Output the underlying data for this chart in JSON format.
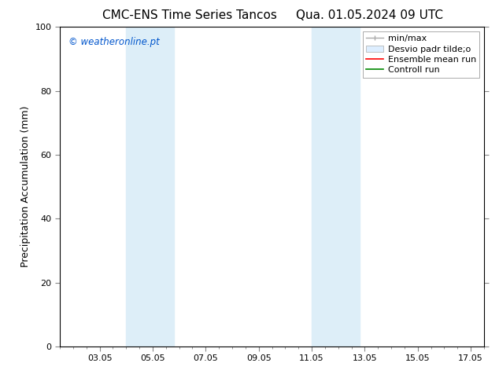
{
  "title_left": "CMC-ENS Time Series Tancos",
  "title_right": "Qua. 01.05.2024 09 UTC",
  "ylabel": "Precipitation Accumulation (mm)",
  "ylim": [
    0,
    100
  ],
  "yticks": [
    0,
    20,
    40,
    60,
    80,
    100
  ],
  "xtick_labels": [
    "03.05",
    "05.05",
    "07.05",
    "09.05",
    "11.05",
    "13.05",
    "15.05",
    "17.05"
  ],
  "xtick_positions": [
    3,
    5,
    7,
    9,
    11,
    13,
    15,
    17
  ],
  "xlim": [
    1.5,
    17.5
  ],
  "shaded_bands": [
    {
      "x_start": 4.0,
      "x_end": 5.8,
      "color": "#ddeef8"
    },
    {
      "x_start": 11.0,
      "x_end": 12.8,
      "color": "#ddeef8"
    }
  ],
  "minor_xtick_step": 1,
  "watermark": "© weatheronline.pt",
  "watermark_color": "#0055cc",
  "background_color": "#ffffff",
  "plot_bg_color": "#ffffff",
  "title_fontsize": 11,
  "label_fontsize": 9,
  "tick_fontsize": 8,
  "legend_fontsize": 8
}
